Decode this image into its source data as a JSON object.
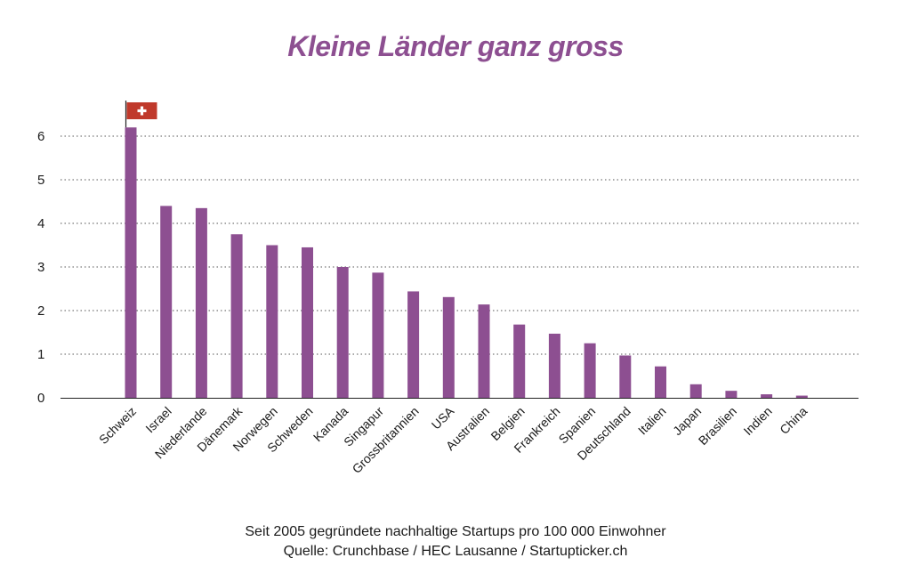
{
  "title": "Kleine Länder ganz gross",
  "caption": "Seit 2005 gegründete nachhaltige Startups pro 100 000 Einwohner",
  "source": "Quelle: Crunchbase / HEC Lausanne / Startupticker.ch",
  "colors": {
    "bar": "#8d4f91",
    "title": "#8d4f91",
    "flag": "#c0392b",
    "grid": "#555555"
  },
  "chart_data": {
    "type": "bar",
    "title": "Kleine Länder ganz gross",
    "xlabel": "",
    "ylabel": "",
    "ylim": [
      0,
      6
    ],
    "yticks": [
      0,
      1,
      2,
      3,
      4,
      5,
      6
    ],
    "grid": "horizontal dotted",
    "categories": [
      "Schweiz",
      "Israel",
      "Niederlande",
      "Dänemark",
      "Norwegen",
      "Schweden",
      "Kanada",
      "Singapur",
      "Grossbritannien",
      "USA",
      "Australien",
      "Belgien",
      "Frankreich",
      "Spanien",
      "Deutschland",
      "Italien",
      "Japan",
      "Brasilien",
      "Indien",
      "China"
    ],
    "values": [
      6.2,
      4.4,
      4.35,
      3.75,
      3.5,
      3.45,
      3.0,
      2.87,
      2.44,
      2.31,
      2.14,
      1.68,
      1.47,
      1.25,
      0.97,
      0.72,
      0.31,
      0.16,
      0.08,
      0.05
    ],
    "highlight": {
      "category": "Schweiz",
      "marker": "swiss-flag"
    }
  }
}
